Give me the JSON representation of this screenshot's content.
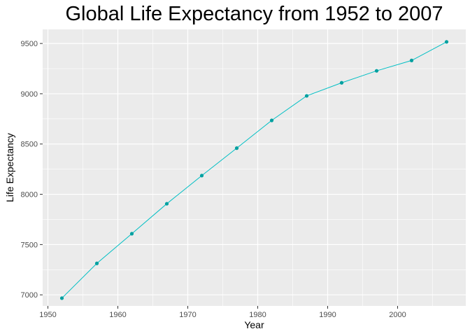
{
  "chart_data": {
    "type": "line",
    "title": "Global Life Expectancy from 1952 to 2007",
    "xlabel": "Year",
    "ylabel": "Life Expectancy",
    "xlim": [
      1949.25,
      2009.75
    ],
    "ylim": [
      6890,
      9640
    ],
    "xticks": [
      1950,
      1960,
      1970,
      1980,
      1990,
      2000
    ],
    "yticks": [
      7000,
      7500,
      8000,
      8500,
      9000,
      9500
    ],
    "grid": true,
    "legend": "none",
    "colors": {
      "line": "#00bfc4",
      "point": "#00a0a0",
      "panel": "#ebebeb",
      "grid": "#ffffff"
    },
    "series": [
      {
        "x": [
          1952,
          1957,
          1962,
          1967,
          1972,
          1977,
          1982,
          1987,
          1992,
          1997,
          2002,
          2007
        ],
        "values": [
          6967,
          7313,
          7608,
          7906,
          8186,
          8459,
          8735,
          8979,
          9109,
          9228,
          9331,
          9516
        ]
      }
    ]
  }
}
